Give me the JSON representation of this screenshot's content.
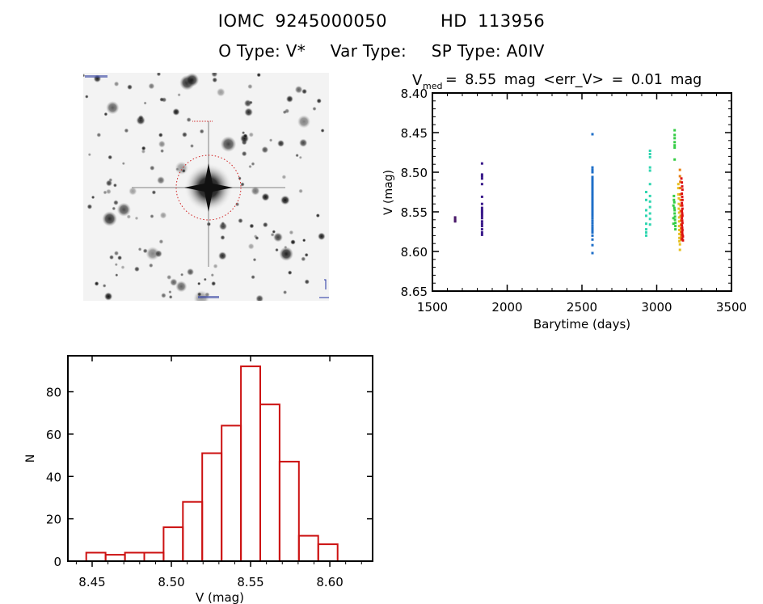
{
  "header": {
    "object_id": "IOMC 9245000050",
    "hd_id": "HD 113956",
    "otype": "O Type: V*",
    "vartype": "Var Type:",
    "sptype": "SP Type: A0IV"
  },
  "image": {
    "description_icon": "star-field-image"
  },
  "colors": {
    "hist_bar": "#cc1111",
    "axes": "#000000",
    "series_colors": [
      "#3a1a7a",
      "#3a1a8a",
      "#1f6fc8",
      "#2fd6b0",
      "#33cc44",
      "#e6c020",
      "#e88010",
      "#dd1111"
    ]
  },
  "chart_data": [
    {
      "type": "scatter",
      "title_main": "V",
      "title_sub": "med",
      "title_rest": "= 8.55 mag <err_V> = 0.01 mag",
      "xlabel": "Barytime (days)",
      "ylabel": "V (mag)",
      "xlim": [
        1500,
        3500
      ],
      "ylim": [
        8.65,
        8.4
      ],
      "xticks": [
        "1500",
        "2000",
        "2500",
        "3000",
        "3500"
      ],
      "yticks": [
        "8.40",
        "8.45",
        "8.50",
        "8.55",
        "8.60",
        "8.65"
      ],
      "series": [
        {
          "name": "set1",
          "color": "#4a1a6a",
          "x": [
            1652,
            1652,
            1652,
            1652
          ],
          "y": [
            8.557,
            8.559,
            8.561,
            8.562
          ]
        },
        {
          "name": "set2",
          "color": "#3a1a8a",
          "x": [
            1832,
            1832,
            1832,
            1832,
            1832,
            1832,
            1832,
            1832,
            1832,
            1832,
            1832,
            1832,
            1832,
            1832,
            1832,
            1832,
            1832,
            1832,
            1832
          ],
          "y": [
            8.489,
            8.503,
            8.505,
            8.508,
            8.515,
            8.531,
            8.54,
            8.545,
            8.548,
            8.55,
            8.552,
            8.555,
            8.558,
            8.562,
            8.565,
            8.568,
            8.572,
            8.576,
            8.579
          ]
        },
        {
          "name": "set3",
          "color": "#1f6fc8",
          "x": [
            2570,
            2570,
            2570,
            2570,
            2570,
            2570,
            2570,
            2570,
            2570,
            2570,
            2570,
            2570,
            2570,
            2570,
            2570,
            2570,
            2570,
            2570,
            2570,
            2570,
            2570,
            2570,
            2570,
            2570,
            2570,
            2570,
            2570,
            2570,
            2570,
            2570,
            2570,
            2570,
            2570,
            2570,
            2570,
            2570,
            2570,
            2570,
            2570,
            2570
          ],
          "y": [
            8.452,
            8.494,
            8.497,
            8.5,
            8.506,
            8.508,
            8.51,
            8.512,
            8.514,
            8.516,
            8.518,
            8.52,
            8.522,
            8.524,
            8.526,
            8.528,
            8.53,
            8.532,
            8.534,
            8.536,
            8.538,
            8.54,
            8.542,
            8.544,
            8.546,
            8.548,
            8.55,
            8.552,
            8.555,
            8.558,
            8.561,
            8.564,
            8.567,
            8.57,
            8.573,
            8.576,
            8.58,
            8.585,
            8.592,
            8.602
          ]
        },
        {
          "name": "set4",
          "color": "#2fd6b0",
          "x": [
            2930,
            2930,
            2930,
            2930,
            2930,
            2930,
            2930,
            2930,
            2955,
            2955,
            2955,
            2955,
            2955,
            2955,
            2955,
            2955,
            2955,
            2955,
            2955,
            2955
          ],
          "y": [
            8.525,
            8.535,
            8.548,
            8.555,
            8.565,
            8.572,
            8.576,
            8.58,
            8.473,
            8.477,
            8.481,
            8.494,
            8.498,
            8.515,
            8.53,
            8.537,
            8.544,
            8.552,
            8.559,
            8.566
          ]
        },
        {
          "name": "set5",
          "color": "#33cc44",
          "x": [
            3120,
            3120,
            3120,
            3120,
            3120,
            3120,
            3120,
            3115,
            3115,
            3118,
            3118,
            3120,
            3120,
            3122,
            3122,
            3125,
            3125,
            3125,
            3112,
            3112,
            3112
          ],
          "y": [
            8.447,
            8.453,
            8.457,
            8.462,
            8.466,
            8.469,
            8.484,
            8.53,
            8.535,
            8.538,
            8.545,
            8.548,
            8.552,
            8.556,
            8.56,
            8.564,
            8.568,
            8.572,
            8.542,
            8.558,
            8.565
          ]
        },
        {
          "name": "set6",
          "color": "#e6c020",
          "x": [
            3145,
            3145,
            3145,
            3148,
            3148,
            3148,
            3150,
            3150,
            3150,
            3150,
            3152,
            3152,
            3152,
            3152,
            3155,
            3155
          ],
          "y": [
            8.515,
            8.52,
            8.528,
            8.533,
            8.54,
            8.546,
            8.551,
            8.557,
            8.562,
            8.568,
            8.573,
            8.578,
            8.583,
            8.587,
            8.591,
            8.598
          ]
        },
        {
          "name": "set7",
          "color": "#e88010",
          "x": [
            3155,
            3155,
            3158,
            3158,
            3158,
            3160,
            3160,
            3160,
            3160,
            3162,
            3162,
            3162,
            3162,
            3164,
            3164,
            3164
          ],
          "y": [
            8.497,
            8.505,
            8.512,
            8.52,
            8.528,
            8.535,
            8.542,
            8.549,
            8.555,
            8.561,
            8.566,
            8.571,
            8.575,
            8.579,
            8.582,
            8.585
          ]
        },
        {
          "name": "set8",
          "color": "#dd1111",
          "x": [
            3165,
            3168,
            3170,
            3172,
            3168,
            3170,
            3172,
            3168,
            3170,
            3172,
            3168,
            3170,
            3172,
            3168,
            3170,
            3172,
            3168,
            3170,
            3172,
            3170,
            3172,
            3175,
            3170,
            3175
          ],
          "y": [
            8.508,
            8.513,
            8.518,
            8.522,
            8.527,
            8.531,
            8.535,
            8.539,
            8.542,
            8.546,
            8.549,
            8.552,
            8.555,
            8.558,
            8.561,
            8.564,
            8.567,
            8.57,
            8.573,
            8.576,
            8.579,
            8.581,
            8.584,
            8.586
          ]
        }
      ]
    },
    {
      "type": "bar",
      "subtype": "histogram",
      "xlabel": "V (mag)",
      "ylabel": "N",
      "xlim": [
        8.4347,
        8.627
      ],
      "ylim": [
        0,
        97
      ],
      "xticks": [
        "8.45",
        "8.50",
        "8.55",
        "8.60"
      ],
      "yticks": [
        "0",
        "20",
        "40",
        "60",
        "80"
      ],
      "bin_start": 8.4463,
      "bin_width": 0.0122,
      "values": [
        4,
        3,
        4,
        4,
        16,
        28,
        51,
        64,
        92,
        74,
        47,
        12,
        8
      ]
    }
  ]
}
